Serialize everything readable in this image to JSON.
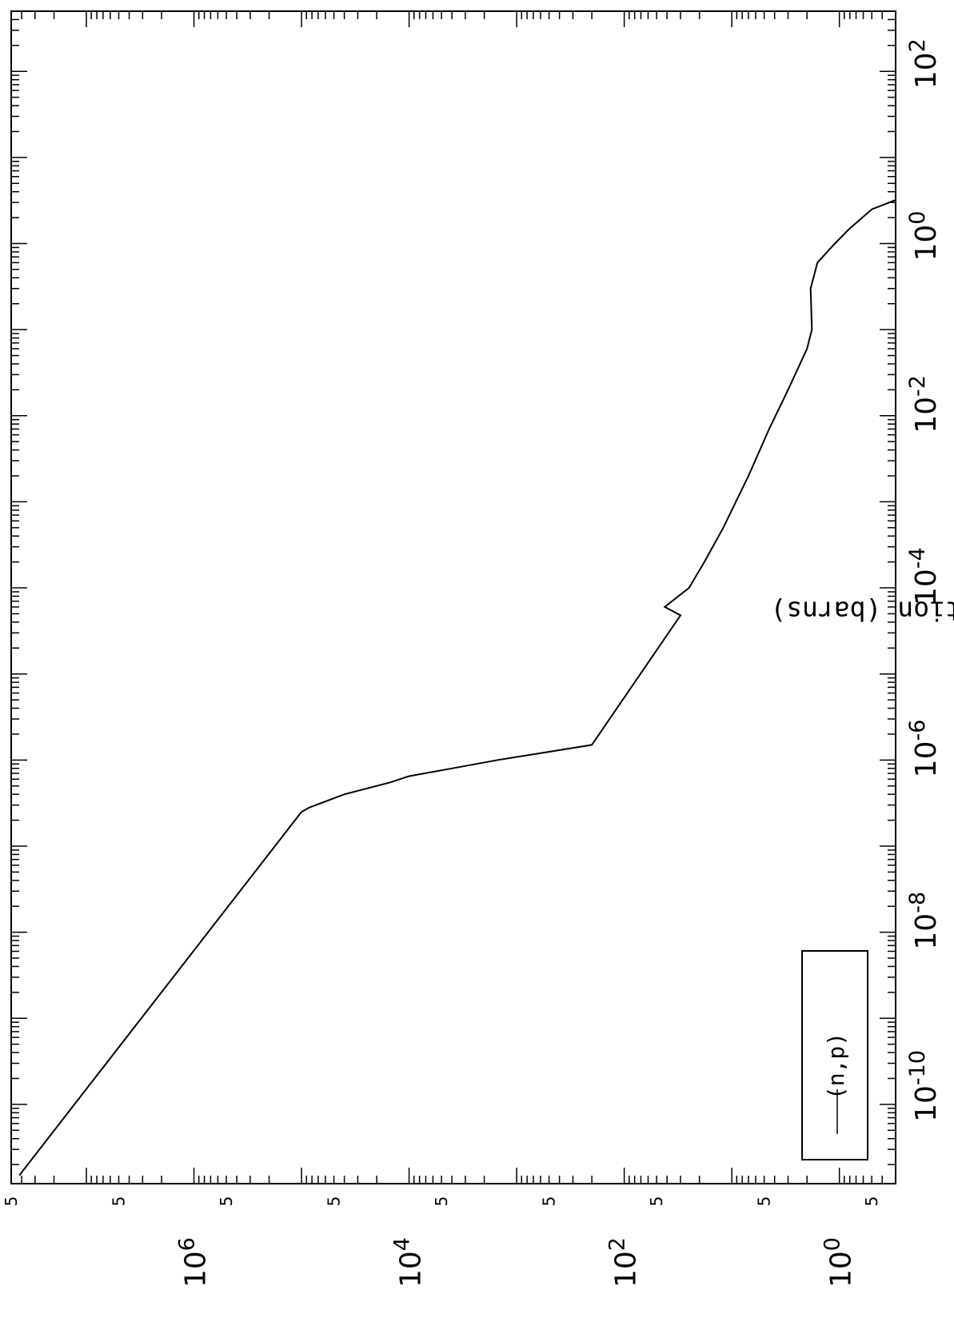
{
  "chart_data": {
    "type": "line",
    "orientation": "rotated-90-ccw",
    "title": "",
    "xlabel": "",
    "ylabel": "Cross Section (barns)",
    "x_scale": "log",
    "y_scale": "log",
    "xlim": [
      1.2e-11,
      500.0
    ],
    "ylim": [
      0.3,
      50000000.0
    ],
    "x_ticks": [
      {
        "exp": "-10",
        "label": "10-10"
      },
      {
        "exp": "-8",
        "label": "10-8"
      },
      {
        "exp": "-6",
        "label": "10-6"
      },
      {
        "exp": "-4",
        "label": "10-4"
      },
      {
        "exp": "-2",
        "label": "10-2"
      },
      {
        "exp": "0",
        "label": "100"
      },
      {
        "exp": "2",
        "label": "102"
      }
    ],
    "y_ticks": [
      {
        "exp": "0",
        "label": "100"
      },
      {
        "exp": "2",
        "label": "102"
      },
      {
        "exp": "4",
        "label": "104"
      },
      {
        "exp": "6",
        "label": "106"
      }
    ],
    "y_minor_labels": "5",
    "legend": {
      "position": "top-left",
      "entries": [
        "(n,p)"
      ]
    },
    "grid": false,
    "series": [
      {
        "name": "(n,p)",
        "points": [
          [
            1.5e-11,
            42000000.0
          ],
          [
            2.5e-07,
            100000.0
          ],
          [
            2.8e-07,
            85000.0
          ],
          [
            4e-07,
            40000.0
          ],
          [
            5.5e-07,
            15000.0
          ],
          [
            6.5e-07,
            10000.0
          ],
          [
            8e-07,
            4000.0
          ],
          [
            1e-06,
            1500.0
          ],
          [
            1.2e-06,
            600.0
          ],
          [
            1.5e-06,
            200.0
          ],
          [
            4.8e-05,
            30.0
          ],
          [
            6e-05,
            42.0
          ],
          [
            0.0001,
            25.0
          ],
          [
            0.0002,
            18.0
          ],
          [
            0.0005,
            12.0
          ],
          [
            0.002,
            7.0
          ],
          [
            0.007,
            4.5
          ],
          [
            0.02,
            3.0
          ],
          [
            0.06,
            2.0
          ],
          [
            0.1,
            1.8
          ],
          [
            0.3,
            1.85
          ],
          [
            0.6,
            1.6
          ],
          [
            1.0,
            1.1
          ],
          [
            1.5,
            0.8
          ],
          [
            2.5,
            0.5
          ],
          [
            3.2,
            0.3
          ]
        ]
      }
    ]
  }
}
